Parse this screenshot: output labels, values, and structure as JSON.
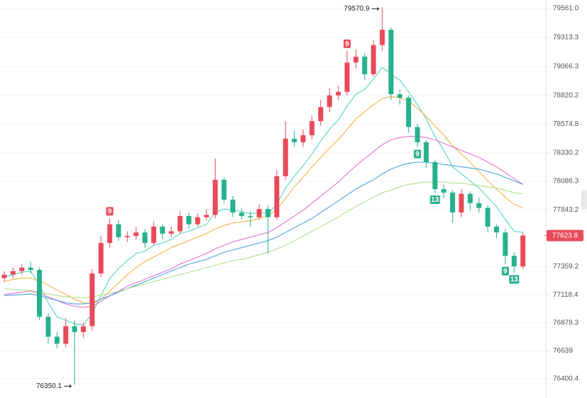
{
  "chart_data": {
    "type": "candlestick",
    "up_color": "#e84a5a",
    "down_color": "#26b08e",
    "open": [
      77260,
      77290,
      77320,
      77350,
      77330,
      76930,
      76760,
      76700,
      76850,
      76800,
      76850,
      77300,
      77560,
      77720,
      77610,
      77620,
      77650,
      77560,
      77700,
      77640,
      77660,
      77790,
      77720,
      77780,
      77800,
      78100,
      77930,
      77820,
      77790,
      77780,
      77850,
      77780,
      78130,
      78450,
      78420,
      78480,
      78600,
      78720,
      78820,
      78850,
      79100,
      79150,
      79000,
      79250,
      79380,
      78830,
      78800,
      78550,
      78420,
      78250,
      78020,
      77990,
      77820,
      77980,
      77900,
      77860,
      77700,
      77650,
      77450,
      77360
    ],
    "high": [
      77320,
      77350,
      77380,
      77400,
      77350,
      76960,
      76800,
      76920,
      76900,
      76880,
      77340,
      77620,
      77770,
      77760,
      77660,
      77700,
      77680,
      77740,
      77720,
      77700,
      77830,
      77820,
      77810,
      77850,
      78280,
      78120,
      77960,
      77860,
      77830,
      77890,
      77880,
      78180,
      78600,
      78520,
      78530,
      78650,
      78780,
      78880,
      78900,
      79200,
      79210,
      79180,
      79290,
      79570.9,
      79400,
      78870,
      78820,
      78580,
      78440,
      78270,
      78060,
      78010,
      78020,
      78000,
      77950,
      77880,
      77720,
      77680,
      77480,
      77650
    ],
    "low": [
      77230,
      77260,
      77290,
      77300,
      76900,
      76700,
      76660,
      76670,
      76350.1,
      76750,
      76810,
      77270,
      77520,
      77580,
      77570,
      77590,
      77520,
      77540,
      77590,
      77610,
      77640,
      77680,
      77700,
      77750,
      77770,
      77900,
      77780,
      77760,
      77700,
      77760,
      77470,
      77760,
      78100,
      78380,
      78380,
      78440,
      78560,
      78680,
      78780,
      78820,
      79050,
      78950,
      78980,
      79200,
      78780,
      78740,
      78500,
      78380,
      78200,
      77990,
      77940,
      77730,
      77780,
      77840,
      77820,
      77650,
      77600,
      77380,
      77310,
      77340
    ],
    "close": [
      77290,
      77320,
      77350,
      77330,
      76930,
      76760,
      76700,
      76850,
      76800,
      76850,
      77300,
      77560,
      77720,
      77610,
      77620,
      77650,
      77560,
      77700,
      77640,
      77660,
      77790,
      77720,
      77780,
      77800,
      78100,
      77930,
      77820,
      77790,
      77780,
      77850,
      77780,
      78130,
      78450,
      78420,
      78480,
      78600,
      78720,
      78820,
      78850,
      79100,
      79150,
      79000,
      79250,
      79380,
      78830,
      78800,
      78550,
      78420,
      78250,
      78020,
      77990,
      77820,
      77980,
      77900,
      77860,
      77700,
      77650,
      77450,
      77360,
      77623.8
    ],
    "series": [
      {
        "color": "#4fd6c2",
        "values": [
          77270,
          77290,
          77310,
          77320,
          77200,
          77050,
          76930,
          76900,
          76870,
          76860,
          76960,
          77110,
          77260,
          77340,
          77410,
          77470,
          77490,
          77540,
          77560,
          77590,
          77640,
          77660,
          77690,
          77720,
          77820,
          77850,
          77840,
          77830,
          77810,
          77820,
          77810,
          77890,
          78030,
          78130,
          78220,
          78320,
          78430,
          78530,
          78610,
          78730,
          78830,
          78870,
          78960,
          79060,
          79000,
          78950,
          78850,
          78740,
          78620,
          78470,
          78350,
          78210,
          78150,
          78090,
          78030,
          77950,
          77870,
          77760,
          77660,
          77650
        ]
      },
      {
        "color": "#f2b340",
        "values": [
          77230,
          77250,
          77260,
          77260,
          77240,
          77200,
          77160,
          77120,
          77080,
          77050,
          77040,
          77080,
          77150,
          77220,
          77290,
          77350,
          77400,
          77440,
          77480,
          77520,
          77550,
          77580,
          77610,
          77640,
          77680,
          77710,
          77730,
          77740,
          77750,
          77770,
          77790,
          77850,
          77940,
          78040,
          78120,
          78210,
          78290,
          78370,
          78440,
          78530,
          78620,
          78680,
          78740,
          78790,
          78810,
          78800,
          78770,
          78710,
          78640,
          78560,
          78480,
          78390,
          78320,
          78250,
          78170,
          78090,
          78020,
          77950,
          77890,
          77860
        ]
      },
      {
        "color": "#e46fd0",
        "values": [
          77120,
          77130,
          77140,
          77150,
          77130,
          77100,
          77070,
          77040,
          77020,
          77010,
          77020,
          77060,
          77110,
          77150,
          77190,
          77220,
          77250,
          77280,
          77310,
          77340,
          77380,
          77410,
          77440,
          77470,
          77510,
          77540,
          77570,
          77590,
          77610,
          77630,
          77650,
          77690,
          77740,
          77790,
          77840,
          77900,
          77960,
          78020,
          78080,
          78150,
          78220,
          78280,
          78340,
          78400,
          78440,
          78460,
          78470,
          78470,
          78460,
          78440,
          78410,
          78380,
          78350,
          78320,
          78290,
          78250,
          78210,
          78160,
          78110,
          78060
        ]
      },
      {
        "color": "#4aa3df",
        "values": [
          77110,
          77115,
          77120,
          77125,
          77110,
          77090,
          77070,
          77050,
          77040,
          77040,
          77050,
          77080,
          77110,
          77140,
          77170,
          77200,
          77230,
          77260,
          77290,
          77320,
          77350,
          77380,
          77400,
          77420,
          77450,
          77480,
          77500,
          77520,
          77540,
          77560,
          77580,
          77610,
          77650,
          77690,
          77730,
          77770,
          77820,
          77870,
          77920,
          77970,
          78020,
          78060,
          78100,
          78150,
          78190,
          78220,
          78240,
          78250,
          78250,
          78240,
          78230,
          78220,
          78210,
          78200,
          78190,
          78170,
          78150,
          78120,
          78090,
          78060
        ]
      },
      {
        "color": "#b5df8a",
        "values": [
          77170,
          77165,
          77160,
          77155,
          77140,
          77125,
          77110,
          77100,
          77095,
          77095,
          77100,
          77115,
          77130,
          77150,
          77170,
          77190,
          77210,
          77230,
          77250,
          77270,
          77290,
          77310,
          77330,
          77350,
          77370,
          77390,
          77410,
          77420,
          77440,
          77460,
          77480,
          77510,
          77540,
          77580,
          77620,
          77660,
          77700,
          77740,
          77780,
          77830,
          77870,
          77910,
          77950,
          77990,
          78010,
          78040,
          78060,
          78070,
          78080,
          78080,
          78080,
          78070,
          78070,
          78060,
          78050,
          78040,
          78030,
          78010,
          77990,
          77980
        ]
      }
    ],
    "markers": [
      {
        "label": "9",
        "index": 12,
        "color": "#e84a5a"
      },
      {
        "label": "9",
        "index": 39,
        "color": "#e84a5a"
      },
      {
        "label": "9",
        "index": 47,
        "color": "#26b08e"
      },
      {
        "label": "13",
        "index": 49,
        "color": "#26b08e"
      },
      {
        "label": "9",
        "index": 57,
        "color": "#26b08e"
      },
      {
        "label": "13",
        "index": 58,
        "color": "#26b08e"
      }
    ],
    "ylim": [
      76237,
      79634
    ],
    "yticks": [
      {
        "value": 79561,
        "label": "79561.0"
      },
      79313.3,
      79066.3,
      78820.2,
      78574.8,
      78330.2,
      78086.3,
      77843.2,
      77359.2,
      77118.4,
      76878.3,
      76639,
      76400.4
    ],
    "grid": true
  }
}
